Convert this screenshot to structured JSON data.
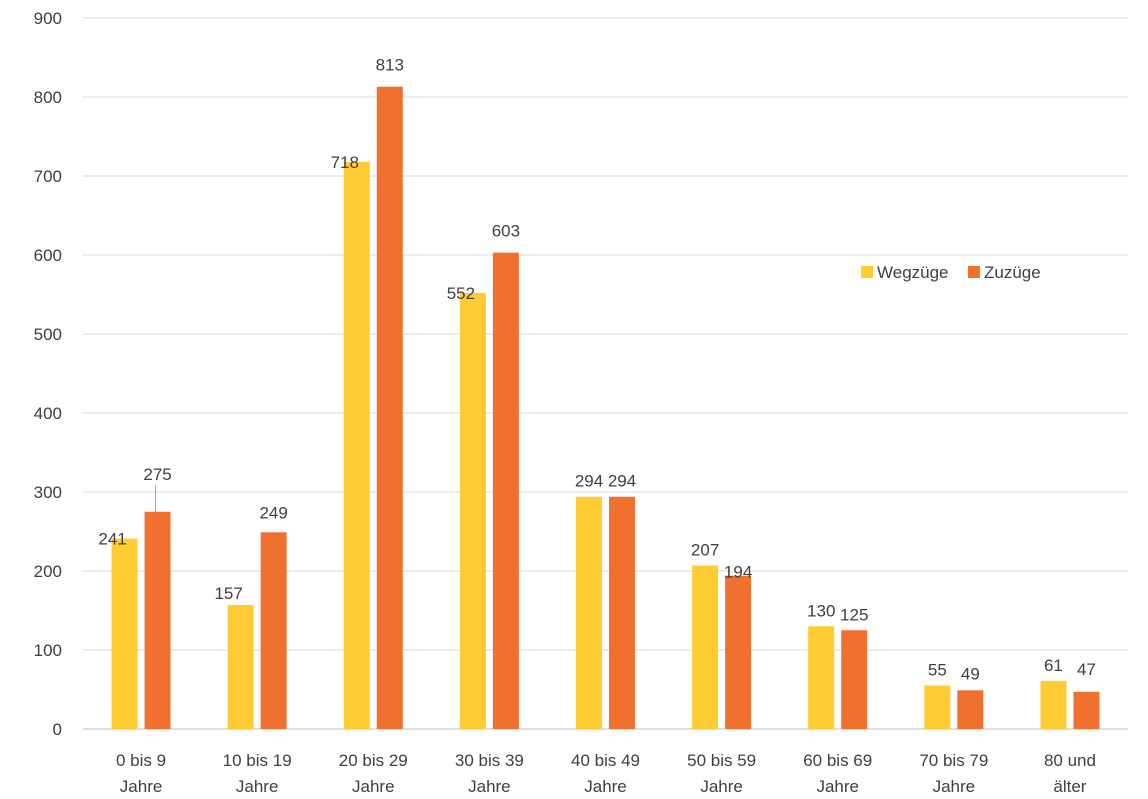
{
  "chart_data": {
    "type": "bar",
    "categories": [
      [
        "0 bis 9",
        "Jahre"
      ],
      [
        "10 bis 19",
        "Jahre"
      ],
      [
        "20 bis 29",
        "Jahre"
      ],
      [
        "30 bis 39",
        "Jahre"
      ],
      [
        "40 bis 49",
        "Jahre"
      ],
      [
        "50 bis 59",
        "Jahre"
      ],
      [
        "60 bis 69",
        "Jahre"
      ],
      [
        "70 bis 79",
        "Jahre"
      ],
      [
        "80 und",
        "älter"
      ]
    ],
    "series": [
      {
        "name": "Wegzüge",
        "color": "#FFCC33",
        "values": [
          241,
          157,
          718,
          552,
          294,
          207,
          130,
          55,
          61
        ]
      },
      {
        "name": "Zuzüge",
        "color": "#F07030",
        "values": [
          275,
          249,
          813,
          603,
          294,
          194,
          125,
          49,
          47
        ]
      }
    ],
    "ylim": [
      0,
      900
    ],
    "yticks": [
      0,
      100,
      200,
      300,
      400,
      500,
      600,
      700,
      800,
      900
    ],
    "grid": true,
    "legend_position": "right"
  }
}
